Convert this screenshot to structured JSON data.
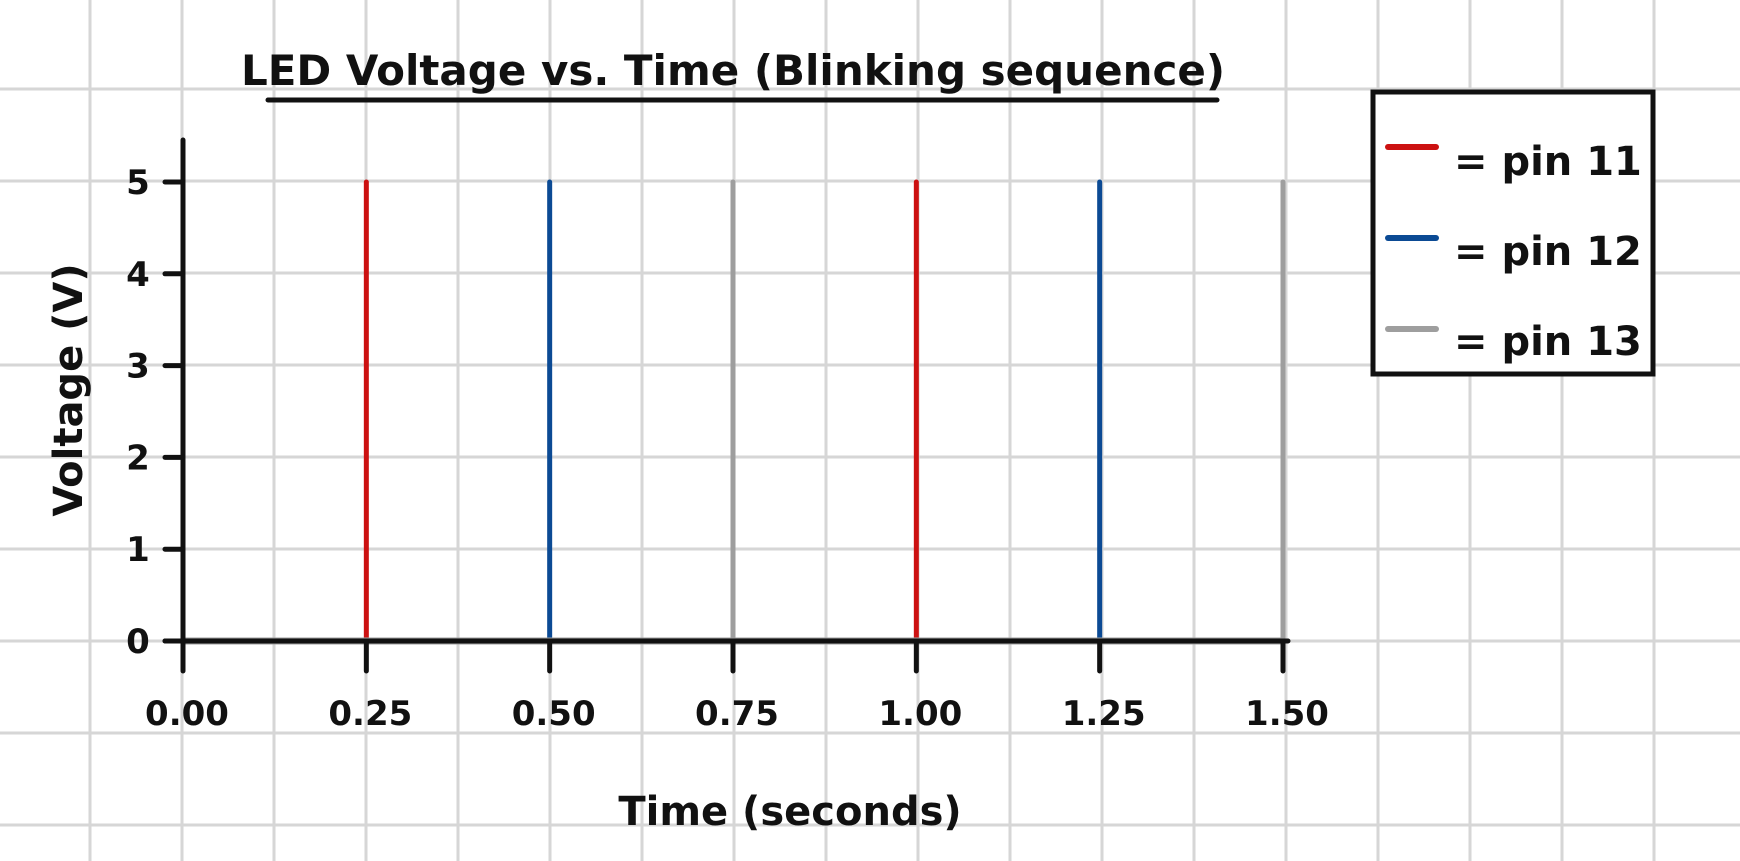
{
  "chart_data": {
    "type": "line",
    "title": "LED Voltage vs. Time (Blinking sequence)",
    "xlabel": "Time (seconds)",
    "ylabel": "Voltage (V)",
    "xlim": [
      0,
      1.5
    ],
    "ylim": [
      0,
      5
    ],
    "x_ticks": [
      "0.00",
      "0.25",
      "0.50",
      "0.75",
      "1.00",
      "1.25",
      "1.50"
    ],
    "y_ticks": [
      "0",
      "1",
      "2",
      "3",
      "4",
      "5"
    ],
    "grid": true,
    "legend_position": "top-right",
    "series": [
      {
        "name": "= pin 11",
        "color": "#cc1111",
        "pulses": [
          {
            "t": 0.25,
            "v": 5
          },
          {
            "t": 1.0,
            "v": 5
          }
        ]
      },
      {
        "name": "= pin 12",
        "color": "#0b4a94",
        "pulses": [
          {
            "t": 0.5,
            "v": 5
          },
          {
            "t": 1.25,
            "v": 5
          }
        ]
      },
      {
        "name": "= pin 13",
        "color": "#9e9e9e",
        "pulses": [
          {
            "t": 0.75,
            "v": 5
          },
          {
            "t": 1.5,
            "v": 5
          }
        ]
      }
    ]
  }
}
